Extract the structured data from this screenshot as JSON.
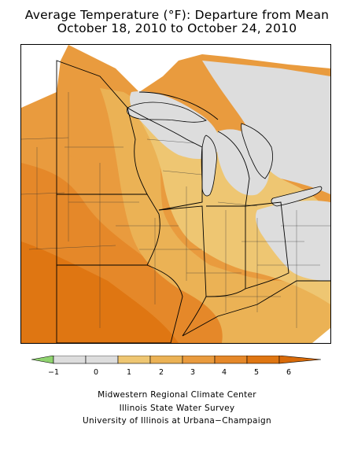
{
  "title": {
    "line1": "Average Temperature (°F): Departure from Mean",
    "line2": "October 18, 2010 to October 24, 2010"
  },
  "map": {
    "region": "Midwestern United States",
    "layers": [
      "temperature-departure-shading",
      "state-boundaries",
      "county-climate-divisions",
      "great-lakes-outline"
    ]
  },
  "legend": {
    "tick_labels": [
      "−1",
      "0",
      "1",
      "2",
      "3",
      "4",
      "5",
      "6"
    ],
    "colors": {
      "below_minus1": "#8fd36f",
      "m1_to_0": "#dddddd",
      "0_to_1": "#dddddd",
      "1_to_2": "#eec672",
      "2_to_3": "#ebb255",
      "3_to_4": "#e99b3e",
      "4_to_5": "#e58829",
      "5_to_6": "#df7612",
      "above_6": "#d86a08"
    }
  },
  "credits": {
    "line1": "Midwestern Regional Climate Center",
    "line2": "Illinois State Water Survey",
    "line3": "University of Illinois at Urbana−Champaign"
  }
}
